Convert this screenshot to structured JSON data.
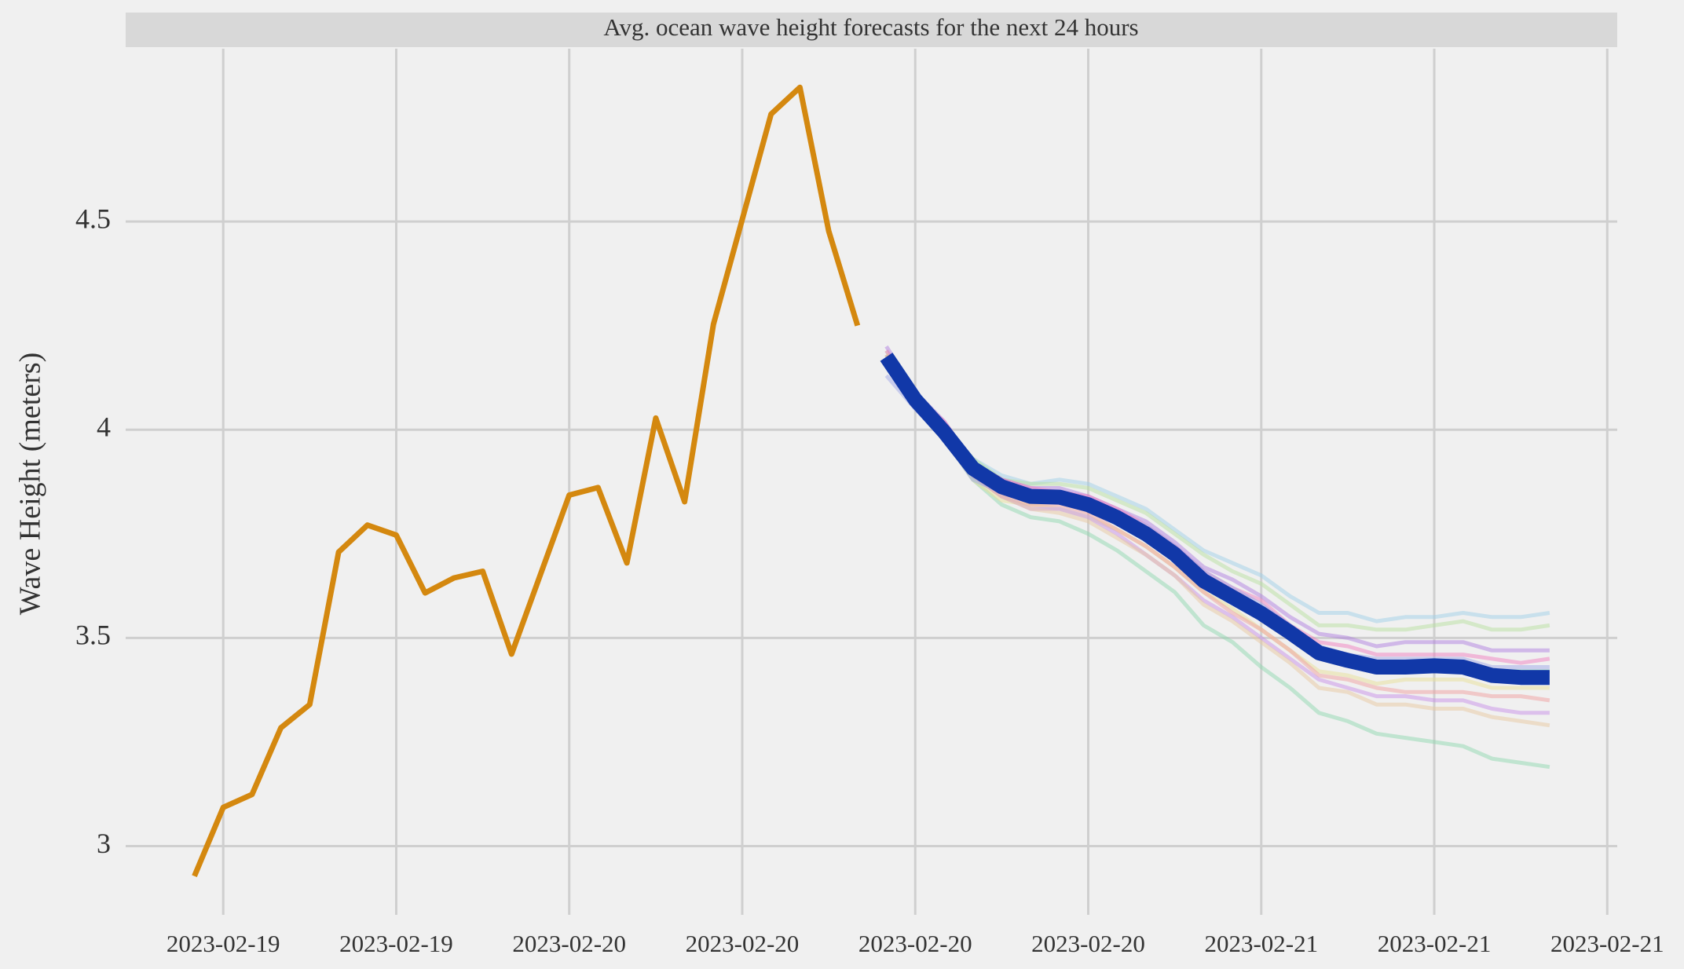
{
  "chart_data": {
    "type": "line",
    "title": "Avg. ocean wave height forecasts for the next 24 hours",
    "y_label": "Wave Height (meters)",
    "categories": [
      null,
      "2023-02-19",
      null,
      null,
      null,
      null,
      null,
      "2023-02-19",
      null,
      null,
      null,
      null,
      null,
      "2023-02-20",
      null,
      null,
      null,
      null,
      null,
      "2023-02-20",
      null,
      null,
      null,
      null,
      null,
      "2023-02-20",
      null,
      null,
      null,
      null,
      null,
      "2023-02-20",
      null,
      null,
      null,
      null,
      null,
      "2023-02-21",
      null,
      null,
      null,
      null,
      null,
      "2023-02-21",
      null,
      null,
      null,
      null,
      null,
      "2023-02-21"
    ],
    "ylim": [
      2.835,
      4.915
    ],
    "yticks": [
      3,
      3.5,
      4,
      4.5
    ],
    "grid": true,
    "series": [
      {
        "color": "#d4880f",
        "values": [
          2.928,
          3.093,
          3.124,
          3.284,
          3.34,
          3.706,
          3.771,
          3.747,
          3.608,
          3.644,
          3.66,
          3.461,
          3.652,
          3.843,
          3.861,
          3.68,
          4.028,
          3.827,
          4.253,
          4.505,
          4.758,
          4.822,
          4.477,
          4.25,
          null,
          null,
          null,
          null,
          null,
          null,
          null,
          null,
          null,
          null,
          null,
          null,
          null,
          null,
          null,
          null,
          null,
          null,
          null,
          null,
          null,
          null,
          null,
          null,
          null,
          null
        ]
      },
      {
        "color": "#8fd8b0",
        "values": [
          null,
          null,
          null,
          null,
          null,
          null,
          null,
          null,
          null,
          null,
          null,
          null,
          null,
          null,
          null,
          null,
          null,
          null,
          null,
          null,
          null,
          null,
          null,
          null,
          4.18,
          4.06,
          3.98,
          3.88,
          3.82,
          3.79,
          3.78,
          3.75,
          3.71,
          3.66,
          3.61,
          3.53,
          3.49,
          3.43,
          3.38,
          3.32,
          3.3,
          3.27,
          3.26,
          3.25,
          3.24,
          3.21,
          3.2,
          3.19,
          null,
          null
        ]
      },
      {
        "color": "#9fd0e8",
        "values": [
          null,
          null,
          null,
          null,
          null,
          null,
          null,
          null,
          null,
          null,
          null,
          null,
          null,
          null,
          null,
          null,
          null,
          null,
          null,
          null,
          null,
          null,
          null,
          null,
          4.18,
          4.08,
          4.01,
          3.93,
          3.89,
          3.87,
          3.88,
          3.87,
          3.84,
          3.81,
          3.76,
          3.71,
          3.68,
          3.65,
          3.6,
          3.56,
          3.56,
          3.54,
          3.55,
          3.55,
          3.56,
          3.55,
          3.55,
          3.56,
          null,
          null
        ]
      },
      {
        "color": "#b8e0a0",
        "values": [
          null,
          null,
          null,
          null,
          null,
          null,
          null,
          null,
          null,
          null,
          null,
          null,
          null,
          null,
          null,
          null,
          null,
          null,
          null,
          null,
          null,
          null,
          null,
          null,
          4.19,
          4.08,
          4.01,
          3.93,
          3.88,
          3.87,
          3.87,
          3.86,
          3.83,
          3.8,
          3.75,
          3.7,
          3.66,
          3.63,
          3.58,
          3.53,
          3.53,
          3.52,
          3.52,
          3.53,
          3.54,
          3.52,
          3.52,
          3.53,
          null,
          null
        ]
      },
      {
        "color": "#b080e0",
        "values": [
          null,
          null,
          null,
          null,
          null,
          null,
          null,
          null,
          null,
          null,
          null,
          null,
          null,
          null,
          null,
          null,
          null,
          null,
          null,
          null,
          null,
          null,
          null,
          null,
          4.2,
          4.09,
          4.02,
          3.92,
          3.88,
          3.86,
          3.86,
          3.84,
          3.81,
          3.78,
          3.73,
          3.67,
          3.64,
          3.6,
          3.55,
          3.51,
          3.5,
          3.48,
          3.49,
          3.49,
          3.49,
          3.47,
          3.47,
          3.47,
          null,
          null
        ]
      },
      {
        "color": "#f080c0",
        "values": [
          null,
          null,
          null,
          null,
          null,
          null,
          null,
          null,
          null,
          null,
          null,
          null,
          null,
          null,
          null,
          null,
          null,
          null,
          null,
          null,
          null,
          null,
          null,
          null,
          4.19,
          4.08,
          4.02,
          3.92,
          3.88,
          3.86,
          3.85,
          3.84,
          3.81,
          3.77,
          3.72,
          3.66,
          3.62,
          3.59,
          3.53,
          3.49,
          3.48,
          3.46,
          3.46,
          3.46,
          3.46,
          3.45,
          3.44,
          3.45,
          null,
          null
        ]
      },
      {
        "color": "#e8e098",
        "values": [
          null,
          null,
          null,
          null,
          null,
          null,
          null,
          null,
          null,
          null,
          null,
          null,
          null,
          null,
          null,
          null,
          null,
          null,
          null,
          null,
          null,
          null,
          null,
          null,
          4.17,
          4.06,
          3.98,
          3.88,
          3.83,
          3.82,
          3.81,
          3.79,
          3.76,
          3.72,
          3.67,
          3.61,
          3.57,
          3.52,
          3.47,
          3.42,
          3.41,
          3.39,
          3.4,
          3.4,
          3.4,
          3.38,
          3.38,
          3.38,
          null,
          null
        ]
      },
      {
        "color": "#f0a0a0",
        "values": [
          null,
          null,
          null,
          null,
          null,
          null,
          null,
          null,
          null,
          null,
          null,
          null,
          null,
          null,
          null,
          null,
          null,
          null,
          null,
          null,
          null,
          null,
          null,
          null,
          4.18,
          4.07,
          3.99,
          3.89,
          3.84,
          3.82,
          3.82,
          3.8,
          3.76,
          3.72,
          3.67,
          3.61,
          3.56,
          3.52,
          3.47,
          3.41,
          3.4,
          3.38,
          3.37,
          3.37,
          3.37,
          3.36,
          3.36,
          3.35,
          null,
          null
        ]
      },
      {
        "color": "#c890e8",
        "values": [
          null,
          null,
          null,
          null,
          null,
          null,
          null,
          null,
          null,
          null,
          null,
          null,
          null,
          null,
          null,
          null,
          null,
          null,
          null,
          null,
          null,
          null,
          null,
          null,
          4.17,
          4.06,
          3.99,
          3.89,
          3.84,
          3.81,
          3.81,
          3.79,
          3.75,
          3.7,
          3.65,
          3.59,
          3.55,
          3.5,
          3.45,
          3.4,
          3.38,
          3.36,
          3.36,
          3.35,
          3.35,
          3.33,
          3.32,
          3.32,
          null,
          null
        ]
      },
      {
        "color": "#e8c8a0",
        "values": [
          null,
          null,
          null,
          null,
          null,
          null,
          null,
          null,
          null,
          null,
          null,
          null,
          null,
          null,
          null,
          null,
          null,
          null,
          null,
          null,
          null,
          null,
          null,
          null,
          4.18,
          4.06,
          3.99,
          3.89,
          3.84,
          3.81,
          3.8,
          3.78,
          3.74,
          3.7,
          3.65,
          3.58,
          3.54,
          3.49,
          3.44,
          3.38,
          3.37,
          3.34,
          3.34,
          3.33,
          3.33,
          3.31,
          3.3,
          3.29,
          null,
          null
        ]
      },
      {
        "color": "#80c8c0",
        "values": [
          null,
          null,
          null,
          null,
          null,
          null,
          null,
          null,
          null,
          null,
          null,
          null,
          null,
          null,
          null,
          null,
          null,
          null,
          null,
          null,
          null,
          null,
          null,
          null,
          4.17,
          4.08,
          4.0,
          3.92,
          3.87,
          3.85,
          3.85,
          3.83,
          3.8,
          3.76,
          3.71,
          3.65,
          3.6,
          3.55,
          3.5,
          3.46,
          3.45,
          3.44,
          3.44,
          3.43,
          3.44,
          3.42,
          3.42,
          3.42,
          null,
          null
        ]
      },
      {
        "color": "#a0a8e8",
        "values": [
          null,
          null,
          null,
          null,
          null,
          null,
          null,
          null,
          null,
          null,
          null,
          null,
          null,
          null,
          null,
          null,
          null,
          null,
          null,
          null,
          null,
          null,
          null,
          null,
          4.13,
          4.05,
          3.98,
          3.88,
          3.85,
          3.84,
          3.85,
          3.83,
          3.8,
          3.77,
          3.72,
          3.66,
          3.62,
          3.58,
          3.53,
          3.48,
          3.46,
          3.45,
          3.45,
          3.45,
          3.45,
          3.43,
          3.43,
          3.43,
          null,
          null
        ]
      },
      {
        "color": "#1138a8",
        "values": [
          null,
          null,
          null,
          null,
          null,
          null,
          null,
          null,
          null,
          null,
          null,
          null,
          null,
          null,
          null,
          null,
          null,
          null,
          null,
          null,
          null,
          null,
          null,
          null,
          4.175,
          4.072,
          3.995,
          3.907,
          3.863,
          3.84,
          3.838,
          3.82,
          3.789,
          3.75,
          3.701,
          3.637,
          3.598,
          3.559,
          3.513,
          3.464,
          3.446,
          3.43,
          3.43,
          3.433,
          3.43,
          3.41,
          3.405,
          3.405,
          null,
          null
        ]
      }
    ]
  }
}
